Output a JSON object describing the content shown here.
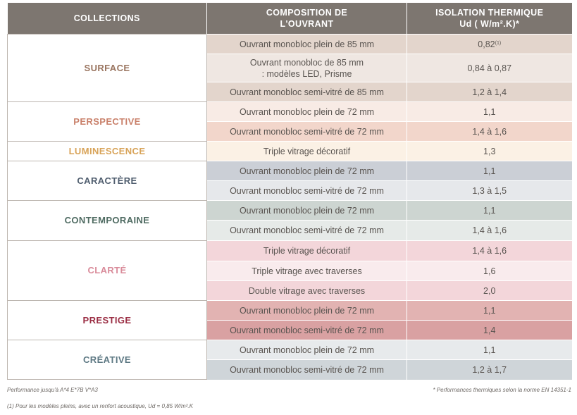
{
  "colors": {
    "header_bg": "#7d7670",
    "surface": "#9a7560",
    "perspective": "#c9806a",
    "luminescence": "#d8a358",
    "caractere": "#4f5d6e",
    "contemporaine": "#4f6b62",
    "clarte": "#d98b9a",
    "prestige": "#9b2f45",
    "creative": "#5d7883"
  },
  "table": {
    "headers": [
      "COLLECTIONS",
      "COMPOSITION DE L'OUVRANT",
      "ISOLATION THERMIQUE Ud ( W/m².K)*"
    ],
    "header_composition_line1": "COMPOSITION DE",
    "header_composition_line2": "L'OUVRANT",
    "header_isolation_line1": "ISOLATION THERMIQUE",
    "header_isolation_line2": "Ud ( W/m².K)*",
    "groups": [
      {
        "name": "SURFACE",
        "color": "#9a7560",
        "rows": [
          {
            "composition": "Ouvrant monobloc plein de 85 mm",
            "value": "0,82",
            "sup": "(1)",
            "bg": "#e3d5cc"
          },
          {
            "composition": "Ouvrant monobloc de 85 mm : modèles LED, Prisme",
            "value": "0,84 à 0,87",
            "bg": "#efe7e2"
          },
          {
            "composition": "Ouvrant monobloc semi-vitré de 85 mm",
            "value": "1,2 à 1,4",
            "bg": "#e3d5cc"
          }
        ]
      },
      {
        "name": "PERSPECTIVE",
        "color": "#c9806a",
        "rows": [
          {
            "composition": "Ouvrant monobloc plein de 72 mm",
            "value": "1,1",
            "bg": "#f8ebe5"
          },
          {
            "composition": "Ouvrant monobloc semi-vitré de 72 mm",
            "value": "1,4 à 1,6",
            "bg": "#f2d6cb"
          }
        ]
      },
      {
        "name": "LUMINESCENCE",
        "color": "#d8a358",
        "rows": [
          {
            "composition": "Triple vitrage décoratif",
            "value": "1,3",
            "bg": "#fbf1e5"
          }
        ]
      },
      {
        "name": "CARACTÈRE",
        "color": "#4f5d6e",
        "rows": [
          {
            "composition": "Ouvrant monobloc plein de 72 mm",
            "value": "1,1",
            "bg": "#cbcfd6"
          },
          {
            "composition": "Ouvrant monobloc semi-vitré de 72 mm",
            "value": "1,3 à 1,5",
            "bg": "#e6e8eb"
          }
        ]
      },
      {
        "name": "CONTEMPORAINE",
        "color": "#4f6b62",
        "rows": [
          {
            "composition": "Ouvrant monobloc plein de 72 mm",
            "value": "1,1",
            "bg": "#cdd5d1"
          },
          {
            "composition": "Ouvrant monobloc semi-vitré de 72 mm",
            "value": "1,4 à 1,6",
            "bg": "#e6eae8"
          }
        ]
      },
      {
        "name": "CLARTÉ",
        "color": "#d98b9a",
        "rows": [
          {
            "composition": "Triple vitrage décoratif",
            "value": "1,4 à 1,6",
            "bg": "#f3d6da"
          },
          {
            "composition": "Triple vitrage avec traverses",
            "value": "1,6",
            "bg": "#f9ebed"
          },
          {
            "composition": "Double vitrage avec traverses",
            "value": "2,0",
            "bg": "#f3d6da"
          }
        ]
      },
      {
        "name": "PRESTIGE",
        "color": "#9b2f45",
        "rows": [
          {
            "composition": "Ouvrant monobloc plein de 72 mm",
            "value": "1,1",
            "bg": "#e2b3b2"
          },
          {
            "composition": "Ouvrant monobloc semi-vitré de 72 mm",
            "value": "1,4",
            "bg": "#d9a1a2"
          }
        ]
      },
      {
        "name": "CRÉATIVE",
        "color": "#5d7883",
        "rows": [
          {
            "composition": "Ouvrant monobloc plein de 72 mm",
            "value": "1,1",
            "bg": "#e7eaec"
          },
          {
            "composition": "Ouvrant monobloc semi-vitré de 72 mm",
            "value": "1,2 à 1,7",
            "bg": "#cfd5d9"
          }
        ]
      }
    ]
  },
  "footnotes": {
    "performance": "Performance jusqu'à A*4 E*7B V*A3",
    "thermal": "* Performances thermiques selon la norme EN 14351-1",
    "note1": "(1) Pour les modèles pleins, avec un renfort acoustique, Ud = 0,85 W/m².K"
  }
}
